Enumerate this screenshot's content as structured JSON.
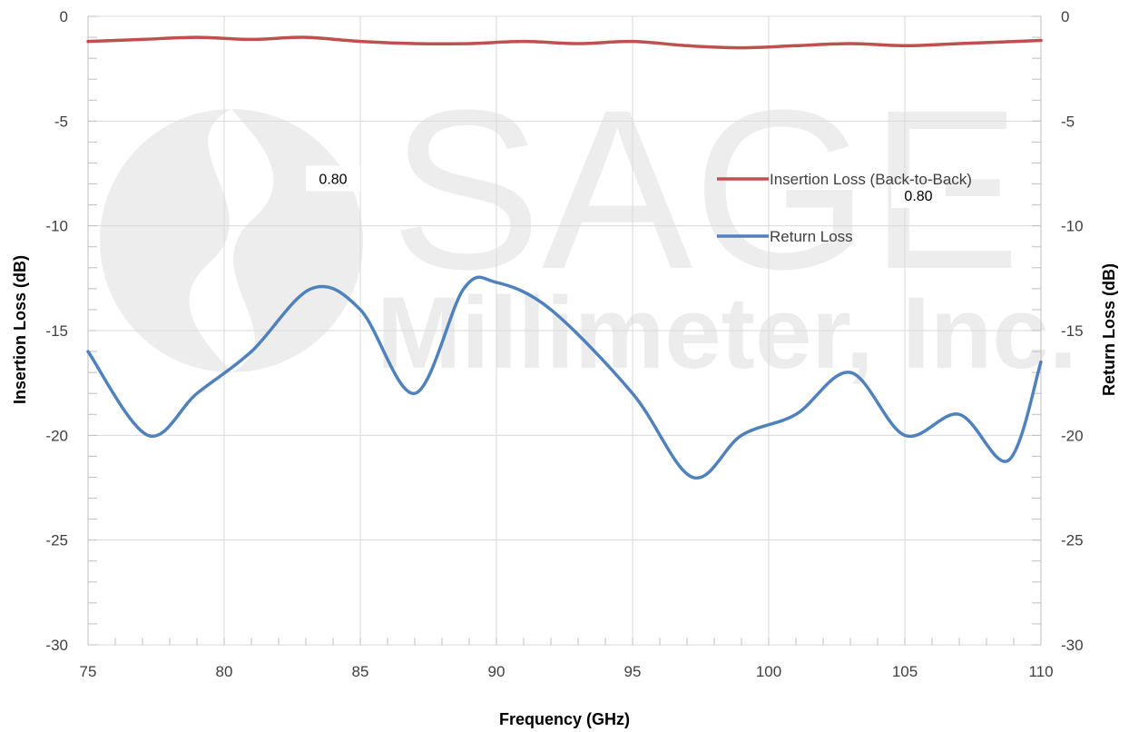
{
  "chart_data": {
    "type": "line",
    "title": "",
    "xlabel": "Frequency (GHz)",
    "ylabel": "Insertion Loss (dB)",
    "y2label": "Return Loss (dB)",
    "xlim": [
      75,
      110
    ],
    "ylim": [
      -30,
      0
    ],
    "y2lim": [
      -30,
      0
    ],
    "x_ticks": [
      "75",
      "80",
      "85",
      "90",
      "95",
      "100",
      "105",
      "110"
    ],
    "y_ticks": [
      "0",
      "-5",
      "-10",
      "-15",
      "-20",
      "-25",
      "-30"
    ],
    "y2_ticks": [
      "0",
      "-5",
      "-10",
      "-15",
      "-20",
      "-25",
      "-30"
    ],
    "grid": true,
    "legend_position": "right",
    "series": [
      {
        "name": "Insertion Loss (Back-to-Back)",
        "color": "#c0504d",
        "axis": "left",
        "points": [
          [
            75,
            -1.2
          ],
          [
            77,
            -1.1
          ],
          [
            79,
            -1.0
          ],
          [
            81,
            -1.1
          ],
          [
            83,
            -1.0
          ],
          [
            85,
            -1.2
          ],
          [
            87,
            -1.3
          ],
          [
            89,
            -1.3
          ],
          [
            91,
            -1.2
          ],
          [
            93,
            -1.3
          ],
          [
            95,
            -1.2
          ],
          [
            97,
            -1.4
          ],
          [
            99,
            -1.5
          ],
          [
            101,
            -1.4
          ],
          [
            103,
            -1.3
          ],
          [
            105,
            -1.4
          ],
          [
            107,
            -1.3
          ],
          [
            110,
            -1.15
          ]
        ]
      },
      {
        "name": "Return Loss",
        "color": "#4f81bd",
        "axis": "right",
        "points": [
          [
            75,
            -16
          ],
          [
            77.2,
            -20
          ],
          [
            79,
            -18
          ],
          [
            81,
            -16
          ],
          [
            83.2,
            -13
          ],
          [
            85,
            -14
          ],
          [
            87,
            -18
          ],
          [
            88.8,
            -13
          ],
          [
            90,
            -12.7
          ],
          [
            92,
            -14
          ],
          [
            95,
            -18
          ],
          [
            97.2,
            -22
          ],
          [
            99,
            -20
          ],
          [
            101,
            -19
          ],
          [
            103,
            -17
          ],
          [
            105,
            -20
          ],
          [
            107,
            -19
          ],
          [
            108.8,
            -21.2
          ],
          [
            110,
            -16.5
          ]
        ]
      }
    ],
    "annotations": [
      {
        "text": "0.80",
        "x": 84,
        "y": -8
      },
      {
        "text": "0.80",
        "x": 105.5,
        "y": -8.8
      }
    ]
  },
  "watermark": {
    "line1": "SAGE",
    "line2": "Millimeter, Inc."
  }
}
